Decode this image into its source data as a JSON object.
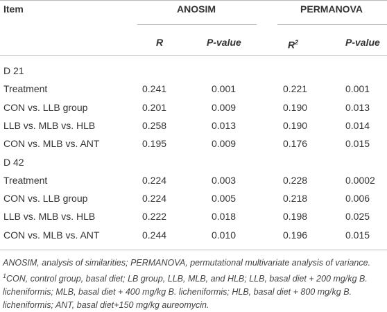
{
  "table": {
    "header": {
      "item": "Item",
      "groups": [
        "ANOSIM",
        "PERMANOVA"
      ],
      "subheaders": [
        {
          "text": "R"
        },
        {
          "text": "P-value"
        },
        {
          "text": "R",
          "sup": "2"
        },
        {
          "text": "P-value"
        }
      ]
    },
    "rows": [
      [
        "D 21"
      ],
      [
        "Treatment",
        "0.241",
        "0.001",
        "0.221",
        "0.001"
      ],
      [
        "CON vs. LLB group",
        "0.201",
        "0.009",
        "0.190",
        "0.013"
      ],
      [
        "LLB vs. MLB vs. HLB",
        "0.258",
        "0.013",
        "0.190",
        "0.014"
      ],
      [
        "CON vs. MLB vs. ANT",
        "0.195",
        "0.009",
        "0.176",
        "0.015"
      ],
      [
        "D 42"
      ],
      [
        "Treatment",
        "0.224",
        "0.003",
        "0.228",
        "0.0002"
      ],
      [
        "CON vs. LLB group",
        "0.224",
        "0.005",
        "0.218",
        "0.006"
      ],
      [
        "LLB vs. MLB vs. HLB",
        "0.222",
        "0.018",
        "0.198",
        "0.025"
      ],
      [
        "CON vs. MLB vs. ANT",
        "0.244",
        "0.010",
        "0.196",
        "0.015"
      ]
    ]
  },
  "footnote": {
    "lead": "ANOSIM, analysis of similarities; PERMANOVA, permutational multivariate analysis of variance. ",
    "sup": "1",
    "rest": "CON, control group, basal diet; LB group, LLB, MLB, and HLB; LLB, basal diet + 200 mg/kg B. licheniformis; MLB, basal diet + 400 mg/kg B. licheniformis; HLB, basal diet + 800 mg/kg B. licheniformis; ANT, basal diet+150 mg/kg aureomycin."
  }
}
